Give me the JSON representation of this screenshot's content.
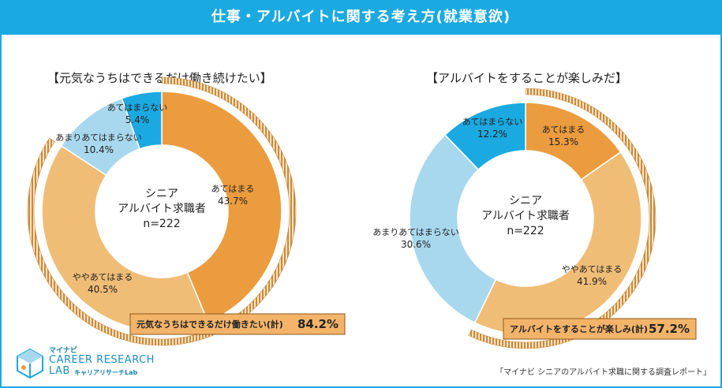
{
  "header": {
    "title": "仕事・アルバイトに関する考え方(就業意欲)"
  },
  "colors": {
    "header": "#1ba9e1",
    "atehamaru": "#eb9c3e",
    "yaya": "#f0bd77",
    "amari": "#a8d8ee",
    "atehamaranai": "#1ba9e1",
    "hatch": "#c98a3c",
    "callout_bg": "#f3b46a"
  },
  "chart_data": [
    {
      "type": "pie",
      "title": "【元気なうちはできるだけ働き続けたい】",
      "center_label": [
        "シニア",
        "アルバイト求職者",
        "n=222"
      ],
      "slices": [
        {
          "label": "あてはまる",
          "value": 43.7,
          "display": "43.7%"
        },
        {
          "label": "ややあてはまる",
          "value": 40.5,
          "display": "40.5%"
        },
        {
          "label": "あまりあてはまらない",
          "value": 10.4,
          "display": "10.4%"
        },
        {
          "label": "あてはまらない",
          "value": 5.4,
          "display": "5.4%"
        }
      ],
      "total_label": "元気なうちはできるだけ働きたい(計)",
      "total_value": "84.2%"
    },
    {
      "type": "pie",
      "title": "【アルバイトをすることが楽しみだ】",
      "center_label": [
        "シニア",
        "アルバイト求職者",
        "n=222"
      ],
      "slices": [
        {
          "label": "あてはまる",
          "value": 15.3,
          "display": "15.3%"
        },
        {
          "label": "ややあてはまる",
          "value": 41.9,
          "display": "41.9%"
        },
        {
          "label": "あまりあてはまらない",
          "value": 30.6,
          "display": "30.6%"
        },
        {
          "label": "あてはまらない",
          "value": 12.2,
          "display": "12.2%"
        }
      ],
      "total_label": "アルバイトをすることが楽しみ(計)",
      "total_value": "57.2%"
    }
  ],
  "logo": {
    "small": "マイナビ",
    "main_line1": "CAREER RESEARCH",
    "main_line2": "LAB",
    "sub": "キャリアリサーチLab"
  },
  "source": "「マイナビ シニアのアルバイト求職に関する調査レポート」"
}
